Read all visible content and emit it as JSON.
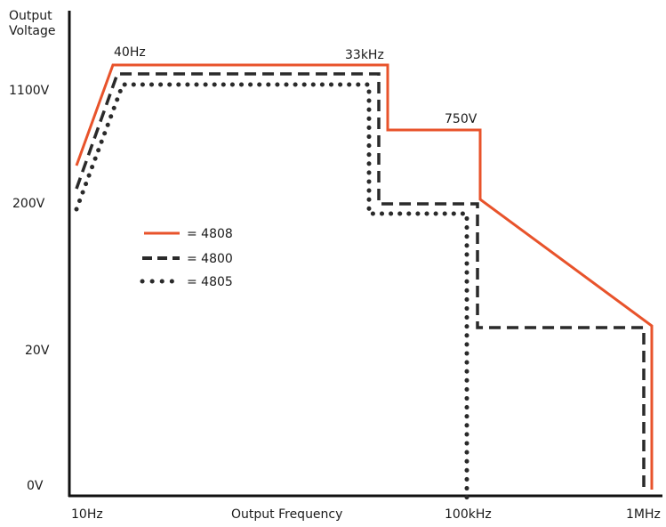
{
  "chart_data": {
    "type": "line",
    "ylabel": "Output Voltage",
    "xlabel": "Output Frequency",
    "x_scale": "log",
    "x_ticks": [
      "10Hz",
      "100kHz",
      "1MHz"
    ],
    "y_ticks": [
      "1100V",
      "200V",
      "20V",
      "0V"
    ],
    "annotations": [
      "40Hz",
      "33kHz",
      "750V"
    ],
    "legend": {
      "placement": "middle-left"
    },
    "series": [
      {
        "name": "4808",
        "style": "solid",
        "color": "#e8532b",
        "points": [
          [
            "10Hz",
            "~400V"
          ],
          [
            "40Hz",
            "1100V+"
          ],
          [
            "33kHz",
            "1100V+"
          ],
          [
            "35kHz",
            "750V"
          ],
          [
            "100kHz",
            "750V"
          ],
          [
            "100kHz",
            "200V+"
          ],
          [
            "1MHz",
            "20V+"
          ],
          [
            "1MHz",
            "0V"
          ]
        ]
      },
      {
        "name": "4800",
        "style": "dashed",
        "color": "#2a2a2a",
        "points": [
          [
            "10Hz",
            "200V+"
          ],
          [
            "40Hz",
            "1100V"
          ],
          [
            "33kHz",
            "1100V"
          ],
          [
            "33kHz",
            "200V+"
          ],
          [
            "100kHz",
            "200V+"
          ],
          [
            "100kHz",
            "20V+"
          ],
          [
            "1MHz",
            "20V+"
          ],
          [
            "1MHz",
            "0V"
          ]
        ]
      },
      {
        "name": "4805",
        "style": "dotted",
        "color": "#2a2a2a",
        "points": [
          [
            "10Hz",
            "~200V"
          ],
          [
            "40Hz",
            "1100V"
          ],
          [
            "30kHz",
            "1100V"
          ],
          [
            "30kHz",
            "200V"
          ],
          [
            "100kHz",
            "200V"
          ],
          [
            "100kHz",
            "0V"
          ]
        ]
      }
    ]
  }
}
